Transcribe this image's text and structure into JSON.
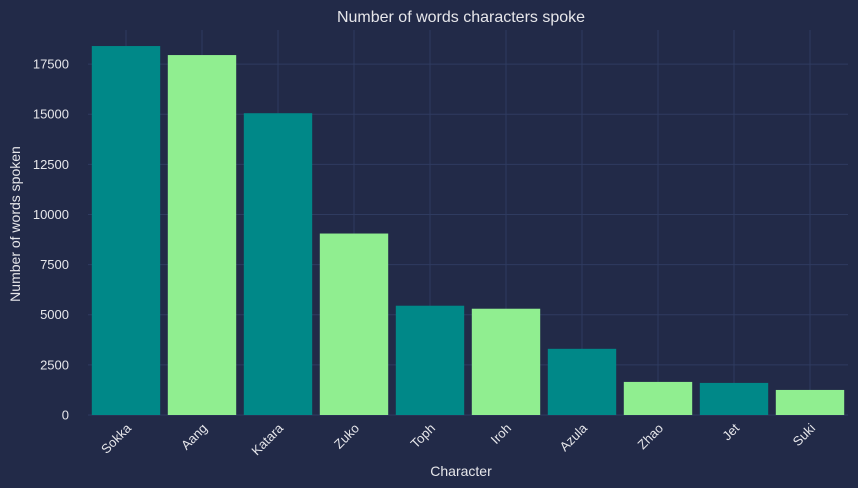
{
  "chart_data": {
    "type": "bar",
    "title": "Number of words characters spoke",
    "xlabel": "Character",
    "ylabel": "Number of words spoken",
    "categories": [
      "Sokka",
      "Aang",
      "Katara",
      "Zuko",
      "Toph",
      "Iroh",
      "Azula",
      "Zhao",
      "Jet",
      "Suki"
    ],
    "values": [
      18400,
      17950,
      15050,
      9050,
      5450,
      5300,
      3300,
      1650,
      1600,
      1250
    ],
    "ylim": [
      0,
      19200
    ],
    "yticks": [
      0,
      2500,
      5000,
      7500,
      10000,
      12500,
      15000,
      17500
    ],
    "grid": true,
    "bar_colors": [
      "#008888",
      "#90ee90"
    ],
    "background": "#222a48"
  }
}
